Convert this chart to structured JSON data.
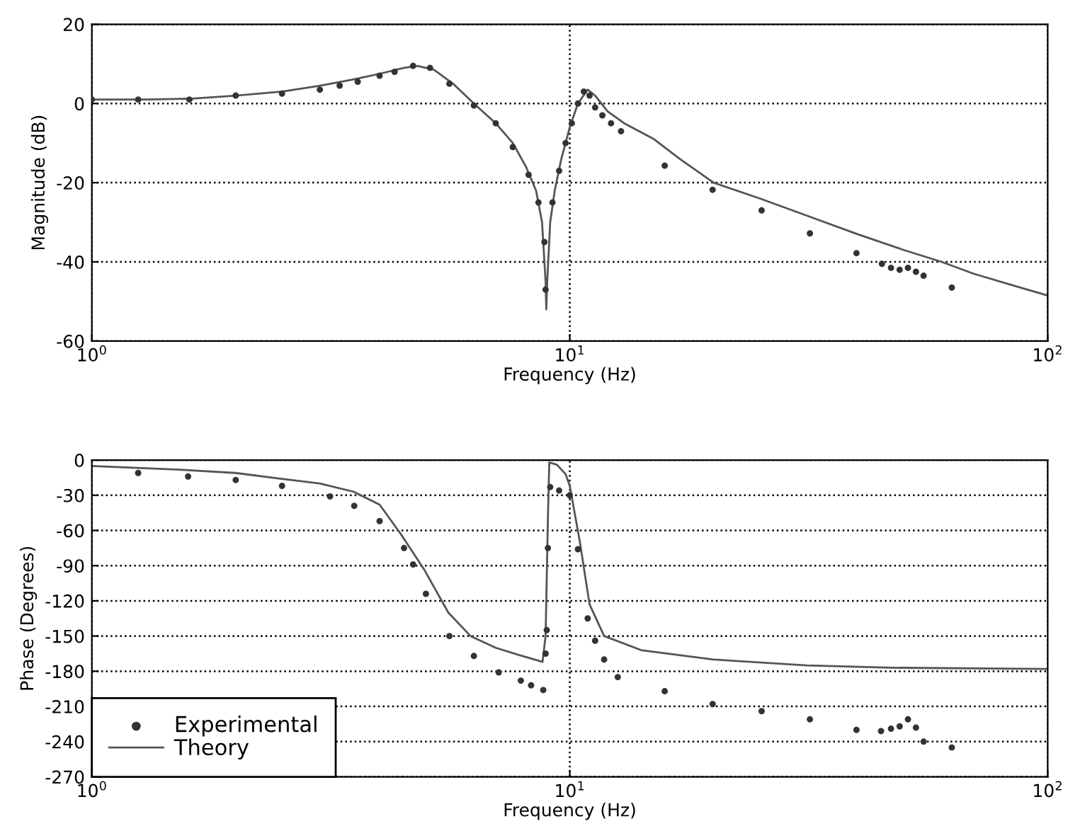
{
  "chart_data": [
    {
      "type": "line",
      "xlabel": "Frequency (Hz)",
      "ylabel": "Magnitude (dB)",
      "log": "x",
      "grid": true,
      "legend": false,
      "xlim": [
        1,
        100
      ],
      "xticks": [
        {
          "value": 1,
          "label": "10$^{0}$"
        },
        {
          "value": 10,
          "label": "10$^{1}$"
        },
        {
          "value": 100,
          "label": "10$^{2}$"
        }
      ],
      "ylim": [
        -60,
        20
      ],
      "yticks": [
        -60,
        -40,
        -20,
        0,
        20
      ],
      "series": [
        {
          "type": "scatter",
          "marker": "circle",
          "color": "#333333",
          "x": [
            1.0,
            1.25,
            1.6,
            2.0,
            2.5,
            3.0,
            3.3,
            3.6,
            4.0,
            4.3,
            4.7,
            5.1,
            5.6,
            6.3,
            7.0,
            7.6,
            8.2,
            8.6,
            8.85,
            8.9,
            9.2,
            9.5,
            9.8,
            10.1,
            10.4,
            10.7,
            11.0,
            11.3,
            11.7,
            12.2,
            12.8,
            15.8,
            19.9,
            25.2,
            31.8,
            39.8,
            45,
            47,
            49,
            51,
            53,
            55,
            63
          ],
          "values": [
            1,
            1,
            1,
            2,
            2.5,
            3.5,
            4.5,
            5.5,
            7,
            8,
            9.5,
            9,
            5,
            -0.5,
            -5,
            -11,
            -18,
            -25,
            -35,
            -47,
            -25,
            -17,
            -10,
            -5,
            0,
            3,
            2,
            -1,
            -3,
            -5,
            -7,
            -15.7,
            -21.8,
            -27,
            -32.8,
            -37.8,
            -40.5,
            -41.5,
            -42,
            -41.5,
            -42.5,
            -43.5,
            -46.5
          ]
        },
        {
          "marker": "none",
          "color": "#555555",
          "x": [
            1.0,
            1.3,
            1.6,
            2.0,
            2.5,
            3.0,
            3.5,
            4.0,
            4.5,
            4.8,
            5.2,
            5.7,
            6.3,
            7.0,
            7.6,
            8.1,
            8.5,
            8.75,
            8.9,
            8.93,
            8.97,
            9.1,
            9.3,
            9.6,
            10.0,
            10.4,
            10.9,
            11.3,
            12,
            13,
            15,
            17,
            20,
            25,
            30,
            40,
            50,
            60,
            70,
            85,
            100
          ],
          "values": [
            1,
            1,
            1.2,
            2,
            3,
            4.5,
            6,
            7.5,
            9,
            9.5,
            8.5,
            5,
            0,
            -5,
            -10,
            -16,
            -22,
            -30,
            -45,
            -52,
            -45,
            -30,
            -22,
            -14,
            -6,
            0,
            3.5,
            2,
            -2,
            -5,
            -9,
            -14,
            -20,
            -24,
            -27.5,
            -33,
            -37,
            -40,
            -43,
            -46,
            -48.5
          ]
        }
      ]
    },
    {
      "type": "line",
      "xlabel": "Frequency (Hz)",
      "ylabel": "Phase (Degrees)",
      "log": "x",
      "grid": true,
      "legend": "bottom left",
      "xlim": [
        1,
        100
      ],
      "xticks": [
        {
          "value": 1,
          "label": "10$^{0}$"
        },
        {
          "value": 10,
          "label": "10$^{1}$"
        },
        {
          "value": 100,
          "label": "10$^{2}$"
        }
      ],
      "ylim": [
        -270,
        0
      ],
      "yticks": [
        -270,
        -240,
        -210,
        -180,
        -150,
        -120,
        -90,
        -60,
        -30,
        0
      ],
      "series": [
        {
          "name": "Experimental",
          "type": "scatter",
          "marker": "circle",
          "color": "#333333",
          "x": [
            1.25,
            1.59,
            2.0,
            2.5,
            3.15,
            3.54,
            4.0,
            4.5,
            4.7,
            5.0,
            5.6,
            6.3,
            7.1,
            7.9,
            8.3,
            8.8,
            8.9,
            8.95,
            9.0,
            9.1,
            9.5,
            10.0,
            10.4,
            10.9,
            11.3,
            11.8,
            12.6,
            15.8,
            19.9,
            25.2,
            31.8,
            39.8,
            44.8,
            47,
            49,
            51,
            53,
            55,
            63
          ],
          "values": [
            -11,
            -14,
            -17,
            -22,
            -31,
            -39,
            -52,
            -75,
            -89,
            -114,
            -150,
            -167,
            -181,
            -188,
            -192,
            -196,
            -165,
            -145,
            -75,
            -23,
            -26,
            -30,
            -76,
            -135,
            -154,
            -170,
            -185,
            -197,
            -208,
            -214,
            -221,
            -230,
            -231,
            -229,
            -227,
            -221,
            -228,
            -240,
            -245
          ]
        },
        {
          "name": "Theory",
          "marker": "none",
          "color": "#555555",
          "x": [
            1.0,
            1.5,
            2.0,
            2.5,
            3.0,
            3.53,
            4.0,
            4.43,
            4.97,
            5.57,
            6.2,
            7.0,
            7.8,
            8.77,
            8.9,
            9.0,
            9.06,
            9.4,
            9.8,
            10.0,
            10.5,
            11.0,
            11.8,
            14.1,
            20,
            31.3,
            47,
            98,
            100
          ],
          "values": [
            -5,
            -8,
            -11,
            -16,
            -20,
            -27,
            -38,
            -63,
            -94,
            -130,
            -150,
            -160,
            -166,
            -172,
            -150,
            -50,
            -2,
            -4,
            -12,
            -22,
            -70,
            -123,
            -150,
            -162,
            -170,
            -175,
            -177,
            -178,
            -178
          ]
        }
      ]
    }
  ]
}
